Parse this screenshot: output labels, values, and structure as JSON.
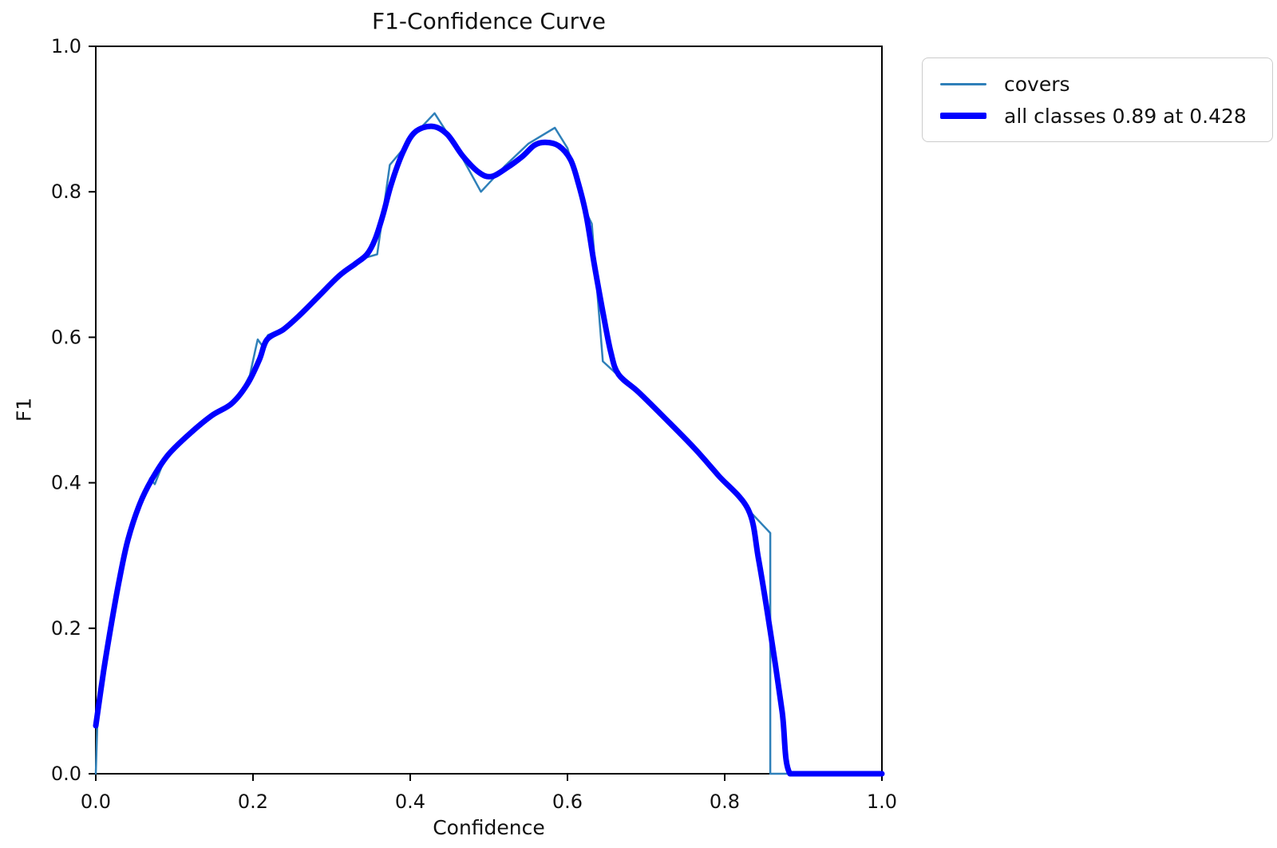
{
  "window": {
    "background": "#ffffff",
    "text_color": "#111111",
    "axis_color": "#000000"
  },
  "chart_data": {
    "type": "line",
    "title": "F1-Confidence Curve",
    "xlabel": "Confidence",
    "ylabel": "F1",
    "xlim": [
      0.0,
      1.0
    ],
    "ylim": [
      0.0,
      1.0
    ],
    "xtick_labels": [
      "0.0",
      "0.2",
      "0.4",
      "0.6",
      "0.8",
      "1.0"
    ],
    "ytick_labels": [
      "0.0",
      "0.2",
      "0.4",
      "0.6",
      "0.8",
      "1.0"
    ],
    "grid": false,
    "legend_position": "outside upper right",
    "best_f1": "0.89",
    "best_confidence": "0.428",
    "series": [
      {
        "name": "covers",
        "color": "#2f80b9",
        "line_width": 2.5,
        "smooth": false,
        "points": [
          [
            0.0,
            0.0
          ],
          [
            0.002,
            0.07
          ],
          [
            0.008,
            0.13
          ],
          [
            0.015,
            0.18
          ],
          [
            0.022,
            0.225
          ],
          [
            0.03,
            0.273
          ],
          [
            0.034,
            0.3
          ],
          [
            0.04,
            0.323
          ],
          [
            0.048,
            0.35
          ],
          [
            0.056,
            0.372
          ],
          [
            0.064,
            0.387
          ],
          [
            0.069,
            0.406
          ],
          [
            0.075,
            0.398
          ],
          [
            0.083,
            0.42
          ],
          [
            0.091,
            0.438
          ],
          [
            0.105,
            0.452
          ],
          [
            0.117,
            0.466
          ],
          [
            0.132,
            0.478
          ],
          [
            0.147,
            0.493
          ],
          [
            0.16,
            0.5
          ],
          [
            0.173,
            0.51
          ],
          [
            0.186,
            0.527
          ],
          [
            0.196,
            0.548
          ],
          [
            0.203,
            0.583
          ],
          [
            0.206,
            0.597
          ],
          [
            0.212,
            0.588
          ],
          [
            0.219,
            0.603
          ],
          [
            0.239,
            0.612
          ],
          [
            0.259,
            0.631
          ],
          [
            0.284,
            0.658
          ],
          [
            0.31,
            0.686
          ],
          [
            0.33,
            0.701
          ],
          [
            0.345,
            0.71
          ],
          [
            0.358,
            0.714
          ],
          [
            0.374,
            0.837
          ],
          [
            0.392,
            0.86
          ],
          [
            0.41,
            0.884
          ],
          [
            0.431,
            0.908
          ],
          [
            0.46,
            0.859
          ],
          [
            0.49,
            0.8
          ],
          [
            0.52,
            0.835
          ],
          [
            0.55,
            0.866
          ],
          [
            0.584,
            0.888
          ],
          [
            0.6,
            0.86
          ],
          [
            0.609,
            0.827
          ],
          [
            0.622,
            0.776
          ],
          [
            0.631,
            0.756
          ],
          [
            0.645,
            0.567
          ],
          [
            0.656,
            0.556
          ],
          [
            0.665,
            0.547
          ],
          [
            0.69,
            0.525
          ],
          [
            0.721,
            0.492
          ],
          [
            0.761,
            0.448
          ],
          [
            0.792,
            0.41
          ],
          [
            0.83,
            0.363
          ],
          [
            0.858,
            0.331
          ],
          [
            0.858,
            0.0
          ],
          [
            1.0,
            0.0
          ]
        ]
      },
      {
        "name": "all classes 0.89 at 0.428",
        "color": "#0000ff",
        "line_width": 7,
        "smooth": true,
        "points": [
          [
            0.0,
            0.066
          ],
          [
            0.01,
            0.141
          ],
          [
            0.02,
            0.207
          ],
          [
            0.03,
            0.267
          ],
          [
            0.041,
            0.322
          ],
          [
            0.056,
            0.371
          ],
          [
            0.071,
            0.404
          ],
          [
            0.091,
            0.437
          ],
          [
            0.117,
            0.465
          ],
          [
            0.147,
            0.492
          ],
          [
            0.173,
            0.509
          ],
          [
            0.193,
            0.536
          ],
          [
            0.208,
            0.569
          ],
          [
            0.218,
            0.597
          ],
          [
            0.239,
            0.611
          ],
          [
            0.259,
            0.63
          ],
          [
            0.284,
            0.657
          ],
          [
            0.31,
            0.685
          ],
          [
            0.33,
            0.701
          ],
          [
            0.345,
            0.714
          ],
          [
            0.355,
            0.734
          ],
          [
            0.365,
            0.767
          ],
          [
            0.376,
            0.811
          ],
          [
            0.391,
            0.855
          ],
          [
            0.406,
            0.882
          ],
          [
            0.428,
            0.89
          ],
          [
            0.447,
            0.879
          ],
          [
            0.467,
            0.849
          ],
          [
            0.487,
            0.827
          ],
          [
            0.503,
            0.821
          ],
          [
            0.523,
            0.833
          ],
          [
            0.543,
            0.849
          ],
          [
            0.558,
            0.864
          ],
          [
            0.572,
            0.868
          ],
          [
            0.589,
            0.863
          ],
          [
            0.604,
            0.844
          ],
          [
            0.614,
            0.811
          ],
          [
            0.624,
            0.767
          ],
          [
            0.634,
            0.701
          ],
          [
            0.645,
            0.635
          ],
          [
            0.655,
            0.58
          ],
          [
            0.665,
            0.549
          ],
          [
            0.69,
            0.525
          ],
          [
            0.721,
            0.492
          ],
          [
            0.761,
            0.448
          ],
          [
            0.792,
            0.41
          ],
          [
            0.83,
            0.363
          ],
          [
            0.843,
            0.295
          ],
          [
            0.858,
            0.196
          ],
          [
            0.873,
            0.086
          ],
          [
            0.883,
            0.0
          ],
          [
            0.92,
            0.0
          ],
          [
            0.96,
            0.0
          ],
          [
            1.0,
            0.0
          ]
        ]
      }
    ]
  }
}
